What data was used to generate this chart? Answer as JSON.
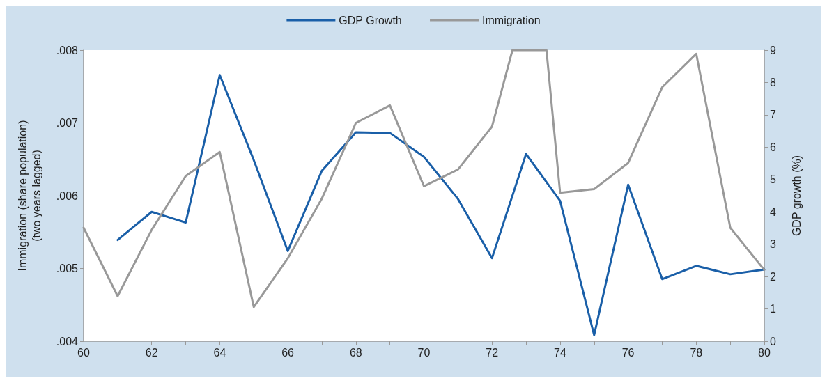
{
  "chart_data": {
    "type": "line",
    "ylabel": "Immigration (share population)\n(two years lagged)",
    "y2label": "GDP growth (%)",
    "xlim": [
      60,
      80
    ],
    "xticks": [
      60,
      {
        "value": 61,
        "label": null
      },
      62,
      {
        "value": 63,
        "label": null
      },
      64,
      {
        "value": 65,
        "label": null
      },
      66,
      {
        "value": 67,
        "label": null
      },
      68,
      {
        "value": 69,
        "label": null
      },
      70,
      {
        "value": 71,
        "label": null
      },
      72,
      {
        "value": 73,
        "label": null
      },
      74,
      {
        "value": 75,
        "label": null
      },
      76,
      {
        "value": 77,
        "label": null
      },
      78,
      {
        "value": 79,
        "label": null
      },
      80
    ],
    "ylim": [
      0.004,
      0.008
    ],
    "yticks": [
      {
        "value": 0.004,
        "label": ".004"
      },
      {
        "value": 0.005,
        "label": ".005"
      },
      {
        "value": 0.006,
        "label": ".006"
      },
      {
        "value": 0.007,
        "label": ".007"
      },
      {
        "value": 0.008,
        "label": ".008"
      }
    ],
    "y2lim": [
      0,
      9
    ],
    "y2ticks": [
      0,
      1,
      2,
      3,
      4,
      5,
      6,
      7,
      8,
      9
    ],
    "series": [
      {
        "name": "GDP Growth",
        "color": "#1a5fa8",
        "axis": "y2",
        "x": [
          61,
          62,
          63,
          64,
          65,
          66,
          67,
          68,
          69,
          70,
          71,
          72,
          73,
          74,
          75,
          76,
          77,
          78,
          79,
          80
        ],
        "values": [
          3.13,
          4.0,
          3.67,
          8.23,
          5.6,
          2.79,
          5.27,
          6.46,
          6.44,
          5.7,
          4.4,
          2.57,
          5.79,
          4.34,
          0.19,
          4.84,
          1.92,
          2.33,
          2.07,
          2.22
        ]
      },
      {
        "name": "Immigration",
        "color": "#999999",
        "x": [
          60,
          61,
          62,
          63,
          64,
          65,
          66,
          67,
          68,
          69,
          70,
          71,
          72,
          72.6,
          73.6,
          74,
          75,
          76,
          77,
          78,
          79,
          80
        ],
        "values": [
          0.00556,
          0.00462,
          0.00553,
          0.00627,
          0.0066,
          0.00447,
          0.00514,
          0.00596,
          0.007,
          0.00724,
          0.00613,
          0.00636,
          0.00695,
          0.008,
          0.008,
          0.00604,
          0.00609,
          0.00645,
          0.00749,
          0.00795,
          0.00556,
          0.00498
        ]
      }
    ],
    "legend": "top",
    "grid": false,
    "marker": "none",
    "line_style": "solid"
  }
}
